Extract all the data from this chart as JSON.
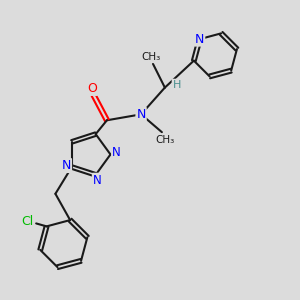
{
  "bg_color": "#dcdcdc",
  "bond_color": "#1a1a1a",
  "N_color": "#0000ff",
  "O_color": "#ff0000",
  "Cl_color": "#00bb00",
  "H_color": "#4a8f8f",
  "figsize": [
    3.0,
    3.0
  ],
  "dpi": 100,
  "xlim": [
    0,
    10
  ],
  "ylim": [
    0,
    10
  ]
}
